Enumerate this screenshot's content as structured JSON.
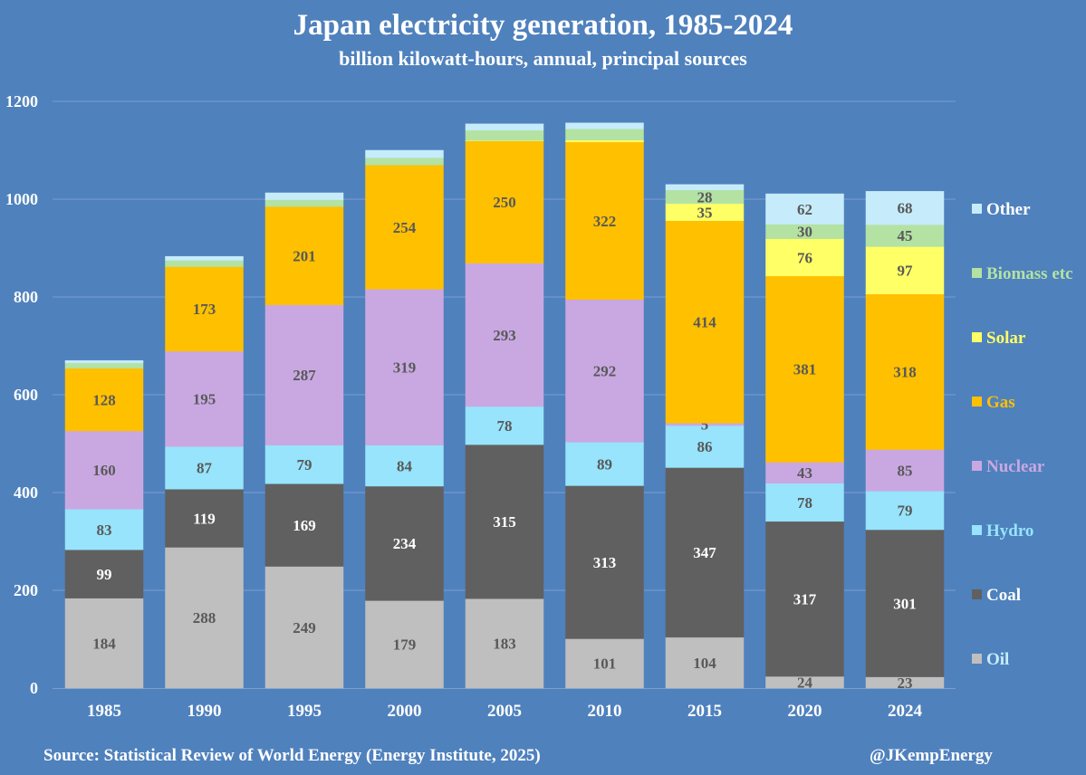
{
  "chart_data": {
    "type": "bar",
    "stacked": true,
    "title": "Japan electricity generation, 1985-2024",
    "subtitle": "billion kilowatt-hours, annual, principal sources",
    "xlabel": "",
    "ylabel": "",
    "ylim": [
      0,
      1200
    ],
    "yticks": [
      0,
      200,
      400,
      600,
      800,
      1000,
      1200
    ],
    "grid": true,
    "legend_position": "right",
    "categories": [
      "1985",
      "1990",
      "1995",
      "2000",
      "2005",
      "2010",
      "2015",
      "2020",
      "2024"
    ],
    "series": [
      {
        "name": "Oil",
        "color": "#bfbfbf",
        "label_color": "#595959",
        "values": [
          184,
          288,
          249,
          179,
          183,
          101,
          104,
          24,
          23
        ],
        "labels": [
          "184",
          "288",
          "249",
          "179",
          "183",
          "101",
          "104",
          "24",
          "23"
        ]
      },
      {
        "name": "Coal",
        "color": "#606060",
        "label_color": "#ffffff",
        "values": [
          99,
          119,
          169,
          234,
          315,
          313,
          347,
          317,
          301
        ],
        "labels": [
          "99",
          "119",
          "169",
          "234",
          "315",
          "313",
          "347",
          "317",
          "301"
        ]
      },
      {
        "name": "Hydro",
        "color": "#97e4fc",
        "label_color": "#595959",
        "values": [
          83,
          87,
          79,
          84,
          78,
          89,
          86,
          78,
          79
        ],
        "labels": [
          "83",
          "87",
          "79",
          "84",
          "78",
          "89",
          "86",
          "78",
          "79"
        ]
      },
      {
        "name": "Nuclear",
        "color": "#c9a8e2",
        "label_color": "#595959",
        "values": [
          160,
          195,
          287,
          319,
          293,
          292,
          5,
          43,
          85
        ],
        "labels": [
          "160",
          "195",
          "287",
          "319",
          "293",
          "292",
          "5",
          "43",
          "85"
        ]
      },
      {
        "name": "Gas",
        "color": "#ffc000",
        "label_color": "#595959",
        "values": [
          128,
          173,
          201,
          254,
          250,
          322,
          414,
          381,
          318
        ],
        "labels": [
          "128",
          "173",
          "201",
          "254",
          "250",
          "322",
          "414",
          "381",
          "318"
        ]
      },
      {
        "name": "Solar",
        "color": "#ffff66",
        "label_color": "#595959",
        "values": [
          0,
          0,
          0,
          0,
          1,
          4,
          35,
          76,
          97
        ],
        "labels": [
          "",
          "",
          "",
          "",
          "",
          "",
          "35",
          "76",
          "97"
        ]
      },
      {
        "name": "Biomass etc",
        "color": "#b3e2a3",
        "label_color": "#595959",
        "values": [
          11,
          13,
          14,
          15,
          21,
          23,
          28,
          30,
          45
        ],
        "labels": [
          "",
          "",
          "",
          "",
          "",
          "",
          "28",
          "30",
          "45"
        ]
      },
      {
        "name": "Other",
        "color": "#c6ecfc",
        "label_color": "#595959",
        "values": [
          5,
          8,
          14,
          15,
          13,
          12,
          11,
          62,
          68
        ],
        "labels": [
          "",
          "",
          "",
          "",
          "",
          "",
          "",
          "62",
          "68"
        ]
      }
    ],
    "legend": [
      {
        "name": "Other",
        "text_color": "#ffffff"
      },
      {
        "name": "Biomass etc",
        "text_color": "#b3e2a3"
      },
      {
        "name": "Solar",
        "text_color": "#ffff66"
      },
      {
        "name": "Gas",
        "text_color": "#ffc000"
      },
      {
        "name": "Nuclear",
        "text_color": "#c9a8e2"
      },
      {
        "name": "Hydro",
        "text_color": "#97e4fc"
      },
      {
        "name": "Coal",
        "text_color": "#ffffff"
      },
      {
        "name": "Oil",
        "text_color": "#c6ecfc"
      }
    ]
  },
  "footer": {
    "source": "Source: Statistical Review of World Energy (Energy Institute, 2025)",
    "credit": "@JKempEnergy"
  },
  "colors": {
    "background": "#4f81bd",
    "gridline": "#7a9fcf"
  }
}
